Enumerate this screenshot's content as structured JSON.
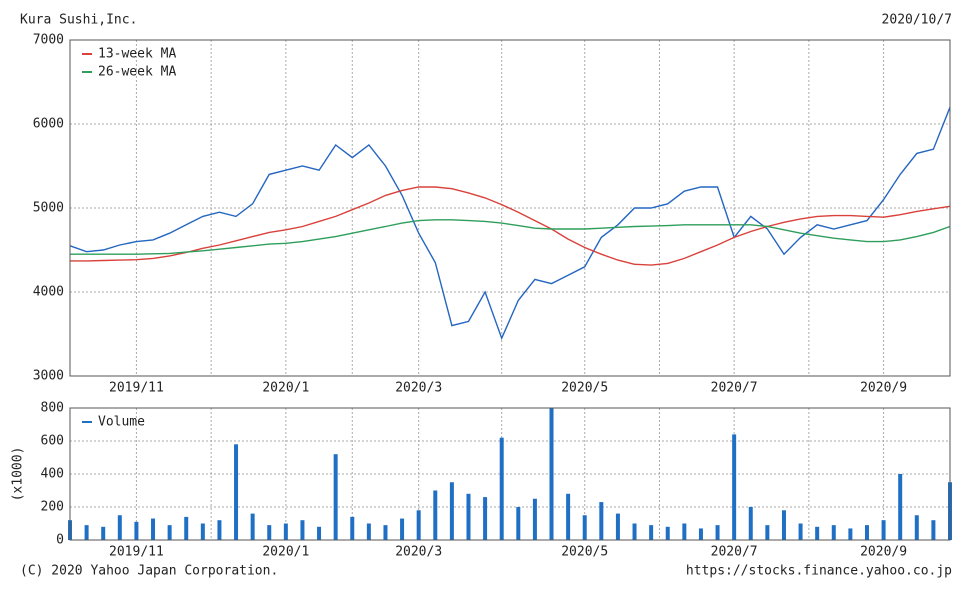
{
  "header": {
    "company": "Kura Sushi,Inc.",
    "date": "2020/10/7"
  },
  "footer": {
    "copyright": "(C) 2020 Yahoo Japan Corporation.",
    "url": "https://stocks.finance.yahoo.co.jp"
  },
  "chart_data": [
    {
      "type": "line",
      "categories": [
        null,
        null,
        null,
        null,
        "2019/11",
        null,
        null,
        null,
        null,
        null,
        null,
        null,
        null,
        "2020/1",
        null,
        null,
        null,
        null,
        null,
        null,
        null,
        "2020/3",
        null,
        null,
        null,
        null,
        null,
        null,
        null,
        null,
        null,
        "2020/5",
        null,
        null,
        null,
        null,
        null,
        null,
        null,
        null,
        "2020/7",
        null,
        null,
        null,
        null,
        null,
        null,
        null,
        null,
        "2020/9",
        null,
        null,
        null,
        null
      ],
      "ylim": [
        3000,
        7000
      ],
      "yticks": [
        3000,
        4000,
        5000,
        6000,
        7000
      ],
      "grid": true,
      "legend": "top-left",
      "series": [
        {
          "color": "#2466c2",
          "values": [
            4550,
            4480,
            4500,
            4560,
            4600,
            4620,
            4700,
            4800,
            4900,
            4950,
            4900,
            5050,
            5400,
            5450,
            5500,
            5450,
            5750,
            5600,
            5750,
            5500,
            5150,
            4700,
            4350,
            3600,
            3650,
            4000,
            3450,
            3900,
            4150,
            4100,
            4200,
            4300,
            4650,
            4800,
            5000,
            5000,
            5050,
            5200,
            5250,
            5250,
            4650,
            4900,
            4750,
            4450,
            4650,
            4800,
            4750,
            4800,
            4850,
            5100,
            5400,
            5650,
            5700,
            6200
          ]
        },
        {
          "name": "13-week MA",
          "color": "#d9413a",
          "values": [
            4370,
            4370,
            4375,
            4380,
            4385,
            4400,
            4430,
            4470,
            4520,
            4560,
            4610,
            4660,
            4710,
            4740,
            4780,
            4840,
            4900,
            4980,
            5060,
            5150,
            5210,
            5250,
            5250,
            5230,
            5180,
            5120,
            5040,
            4950,
            4850,
            4750,
            4630,
            4530,
            4450,
            4380,
            4330,
            4320,
            4340,
            4400,
            4480,
            4560,
            4650,
            4720,
            4780,
            4830,
            4870,
            4900,
            4910,
            4910,
            4900,
            4890,
            4920,
            4960,
            4990,
            5020
          ]
        },
        {
          "name": "26-week MA",
          "color": "#2e9e5b",
          "values": [
            4450,
            4450,
            4450,
            4450,
            4450,
            4455,
            4460,
            4475,
            4490,
            4510,
            4530,
            4550,
            4570,
            4580,
            4600,
            4630,
            4660,
            4700,
            4740,
            4780,
            4820,
            4850,
            4860,
            4860,
            4850,
            4840,
            4820,
            4790,
            4760,
            4750,
            4750,
            4750,
            4760,
            4770,
            4780,
            4785,
            4790,
            4800,
            4800,
            4800,
            4800,
            4800,
            4780,
            4740,
            4700,
            4670,
            4640,
            4620,
            4600,
            4600,
            4620,
            4660,
            4710,
            4780
          ]
        }
      ]
    },
    {
      "type": "bar",
      "ylabel": "(x1000)",
      "categories": [
        null,
        null,
        null,
        null,
        "2019/11",
        null,
        null,
        null,
        null,
        null,
        null,
        null,
        null,
        "2020/1",
        null,
        null,
        null,
        null,
        null,
        null,
        null,
        "2020/3",
        null,
        null,
        null,
        null,
        null,
        null,
        null,
        null,
        null,
        "2020/5",
        null,
        null,
        null,
        null,
        null,
        null,
        null,
        null,
        "2020/7",
        null,
        null,
        null,
        null,
        null,
        null,
        null,
        null,
        "2020/9",
        null,
        null,
        null,
        null
      ],
      "ylim": [
        0,
        800
      ],
      "yticks": [
        0,
        200,
        400,
        600,
        800
      ],
      "grid": true,
      "legend": "top-left",
      "series": [
        {
          "name": "Volume",
          "color": "#1f6fc5",
          "values": [
            120,
            90,
            80,
            150,
            110,
            130,
            90,
            140,
            100,
            120,
            580,
            160,
            90,
            100,
            120,
            80,
            520,
            140,
            100,
            90,
            130,
            180,
            300,
            350,
            280,
            260,
            620,
            200,
            250,
            800,
            280,
            150,
            230,
            160,
            100,
            90,
            80,
            100,
            70,
            90,
            640,
            200,
            90,
            180,
            100,
            80,
            90,
            70,
            90,
            120,
            400,
            150,
            120,
            350
          ]
        }
      ]
    }
  ]
}
